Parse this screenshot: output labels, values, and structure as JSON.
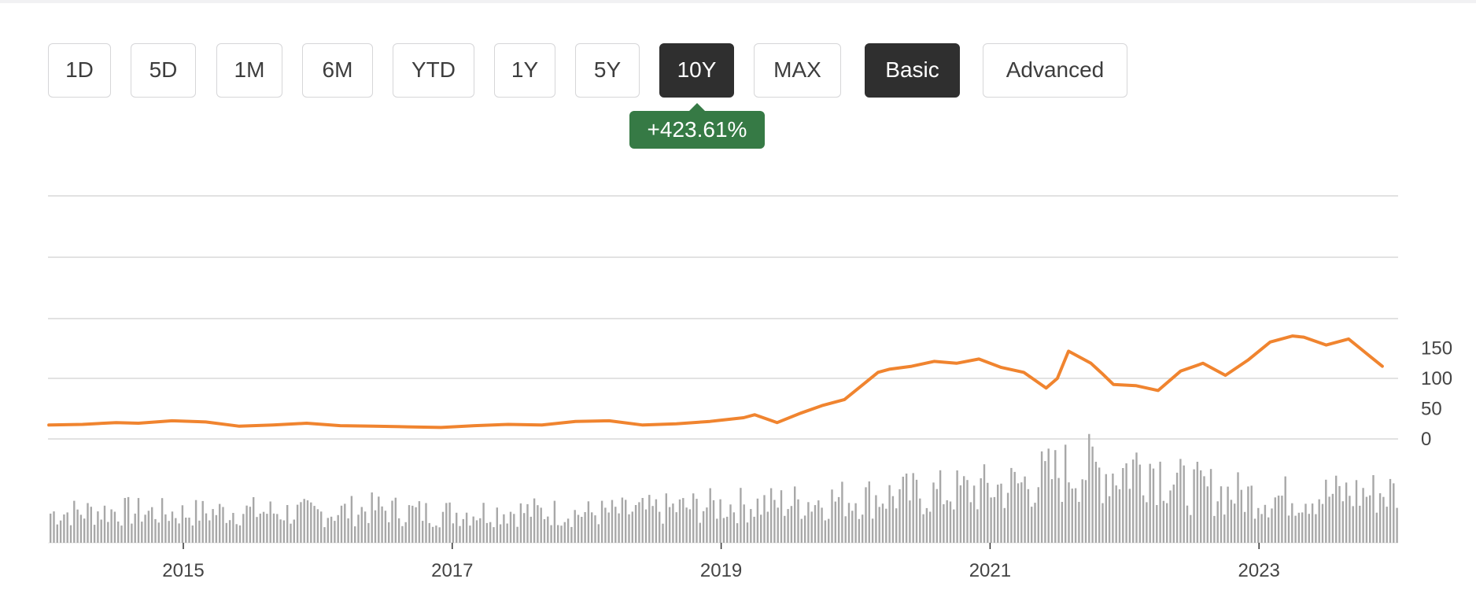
{
  "toolbar": {
    "ranges": [
      "1D",
      "5D",
      "1M",
      "6M",
      "YTD",
      "1Y",
      "5Y",
      "10Y",
      "MAX"
    ],
    "active_range": "10Y",
    "modes": [
      "Basic",
      "Advanced"
    ],
    "active_mode": "Basic",
    "change_badge": "+423.61%"
  },
  "colors": {
    "price_line": "#f0842f",
    "volume_bar": "#a8a8a8",
    "gridline": "#d9d9d9",
    "badge_bg": "#367a45",
    "active_button_bg": "#2f2f2f"
  },
  "chart_data": {
    "type": "line",
    "title": "",
    "xlabel": "",
    "ylabel": "",
    "x_ticks": [
      "2015",
      "2017",
      "2019",
      "2021",
      "2023"
    ],
    "y_ticks": [
      "0",
      "50",
      "100",
      "150"
    ],
    "ylim": [
      0,
      200
    ],
    "y_axis_side": "right",
    "grid": true,
    "legend": "none",
    "series": [
      {
        "x": [
          "2014-01",
          "2014-04",
          "2014-07",
          "2014-09",
          "2014-12",
          "2015-03",
          "2015-06",
          "2015-09",
          "2015-12",
          "2016-03",
          "2016-06",
          "2016-09",
          "2016-12",
          "2017-03",
          "2017-06",
          "2017-09",
          "2017-12",
          "2018-03",
          "2018-06",
          "2018-09",
          "2018-12",
          "2019-01",
          "2019-03",
          "2019-04",
          "2019-06",
          "2019-08",
          "2019-10",
          "2019-12",
          "2020-02",
          "2020-03",
          "2020-04",
          "2020-06",
          "2020-08",
          "2020-10",
          "2020-12",
          "2021-02",
          "2021-04",
          "2021-06",
          "2021-07",
          "2021-08",
          "2021-10",
          "2021-11",
          "2021-12",
          "2022-02",
          "2022-04",
          "2022-06",
          "2022-08",
          "2022-10",
          "2022-12",
          "2023-02",
          "2023-04",
          "2023-05",
          "2023-07",
          "2023-09",
          "2023-10",
          "2023-11",
          "2023-12"
        ],
        "values": [
          23,
          24,
          27,
          26,
          30,
          28,
          21,
          23,
          26,
          22,
          21,
          20,
          19,
          22,
          24,
          23,
          29,
          30,
          23,
          25,
          29,
          31,
          35,
          40,
          27,
          42,
          55,
          65,
          95,
          110,
          115,
          120,
          128,
          125,
          132,
          118,
          110,
          84,
          100,
          145,
          125,
          108,
          90,
          88,
          80,
          112,
          125,
          105,
          130,
          160,
          170,
          168,
          155,
          165,
          150,
          135,
          120
        ]
      }
    ],
    "volume_x": [
      "2014-01",
      "2014-06",
      "2015-01",
      "2015-06",
      "2016-01",
      "2016-06",
      "2016-11",
      "2017-06",
      "2018-01",
      "2018-06",
      "2018-11",
      "2019-05",
      "2019-11",
      "2020-05",
      "2020-09",
      "2021-03",
      "2021-06",
      "2021-09",
      "2021-12",
      "2022-03",
      "2022-06",
      "2022-10",
      "2023-02",
      "2023-06",
      "2023-12"
    ],
    "volume_values": [
      13,
      14,
      13,
      14,
      13,
      15,
      13,
      14,
      13,
      14,
      16,
      17,
      19,
      21,
      22,
      25,
      29,
      33,
      31,
      36,
      25,
      22,
      20,
      21,
      22
    ]
  }
}
